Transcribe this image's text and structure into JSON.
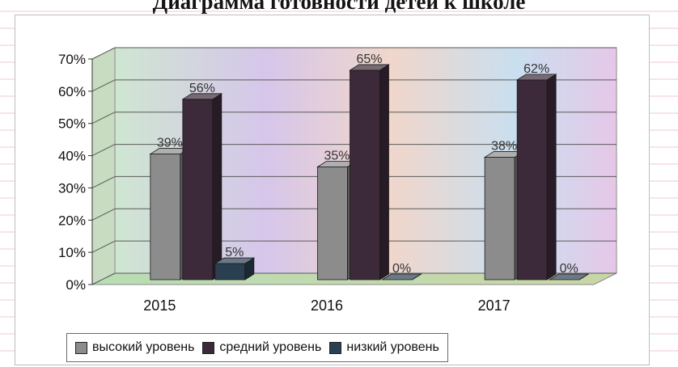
{
  "chart_data": {
    "type": "bar",
    "title": "Диаграмма готовности детей к школе",
    "categories": [
      "2015",
      "2016",
      "2017"
    ],
    "series": [
      {
        "name": "высокий уровень",
        "values": [
          39,
          35,
          38
        ],
        "labels": [
          "39%",
          "35%",
          "38%"
        ],
        "color": "#8c8c8c"
      },
      {
        "name": "средний уровень",
        "values": [
          56,
          65,
          62
        ],
        "labels": [
          "56%",
          "65%",
          "62%"
        ],
        "color": "#3c2a3a"
      },
      {
        "name": "низкий уровень",
        "values": [
          5,
          0,
          0
        ],
        "labels": [
          "5%",
          "0%",
          "0%"
        ],
        "color": "#2a3f50"
      }
    ],
    "ylim": [
      0,
      70
    ],
    "yticks": [
      0,
      10,
      20,
      30,
      40,
      50,
      60,
      70
    ],
    "ytick_labels": [
      "0%",
      "10%",
      "20%",
      "30%",
      "40%",
      "50%",
      "60%",
      "70%"
    ],
    "grid": true,
    "legend_position": "bottom"
  }
}
